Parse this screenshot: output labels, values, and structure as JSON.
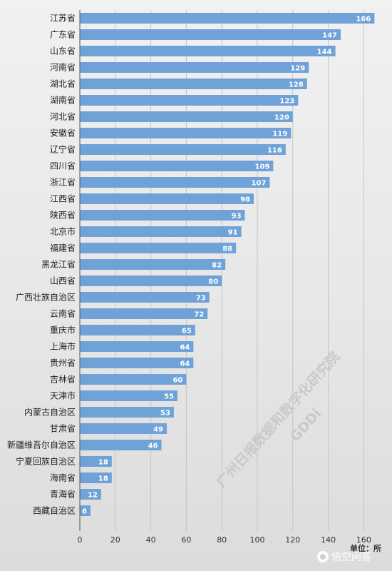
{
  "chart_data": {
    "type": "bar",
    "orientation": "horizontal",
    "categories": [
      "江苏省",
      "广东省",
      "山东省",
      "河南省",
      "湖北省",
      "湖南省",
      "河北省",
      "安徽省",
      "辽宁省",
      "四川省",
      "浙江省",
      "江西省",
      "陕西省",
      "北京市",
      "福建省",
      "黑龙江省",
      "山西省",
      "广西壮族自治区",
      "云南省",
      "重庆市",
      "上海市",
      "贵州省",
      "吉林省",
      "天津市",
      "内蒙古自治区",
      "甘肃省",
      "新疆维吾尔自治区",
      "宁夏回族自治区",
      "海南省",
      "青海省",
      "西藏自治区"
    ],
    "values": [
      166,
      147,
      144,
      129,
      128,
      123,
      120,
      119,
      116,
      109,
      107,
      98,
      93,
      91,
      88,
      82,
      80,
      73,
      72,
      65,
      64,
      64,
      60,
      55,
      53,
      49,
      46,
      18,
      18,
      12,
      6
    ],
    "xlim": [
      0,
      170
    ],
    "xticks": [
      0,
      20,
      40,
      60,
      80,
      100,
      120,
      140,
      160
    ],
    "unit": "单位：所",
    "bar_color": "#6fa3d8",
    "grid": true,
    "legend": "none"
  },
  "watermark": {
    "line1": "广州日报数据和数字化研究院",
    "line2": "GDDi"
  },
  "footer": {
    "brand": "悟空问答",
    "brand_icon": "wukong-logo-icon"
  }
}
